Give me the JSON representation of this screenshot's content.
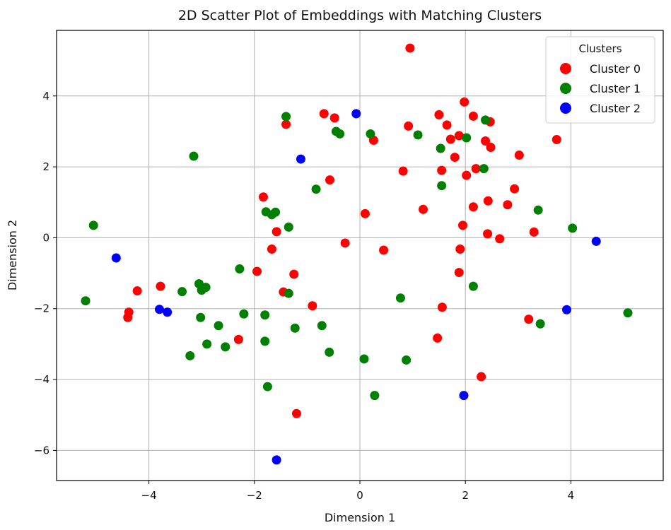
{
  "chart_data": {
    "type": "scatter",
    "title": "2D Scatter Plot of Embeddings with Matching Clusters",
    "xlabel": "Dimension 1",
    "ylabel": "Dimension 2",
    "xlim": [
      -5.75,
      5.75
    ],
    "ylim": [
      -6.85,
      5.85
    ],
    "xticks": [
      -4,
      -2,
      0,
      2,
      4
    ],
    "yticks": [
      -6,
      -4,
      -2,
      0,
      2,
      4
    ],
    "grid": true,
    "legend": {
      "title": "Clusters",
      "position": "top-right"
    },
    "series": [
      {
        "name": "Cluster 0",
        "color": "#ff0000",
        "points": [
          [
            0.95,
            5.35
          ],
          [
            1.98,
            3.83
          ],
          [
            -0.68,
            3.5
          ],
          [
            -0.48,
            3.38
          ],
          [
            -1.4,
            3.2
          ],
          [
            0.92,
            3.15
          ],
          [
            1.5,
            3.47
          ],
          [
            2.15,
            3.43
          ],
          [
            1.65,
            3.18
          ],
          [
            2.47,
            3.27
          ],
          [
            1.88,
            2.88
          ],
          [
            1.72,
            2.78
          ],
          [
            2.38,
            2.73
          ],
          [
            2.48,
            2.55
          ],
          [
            0.26,
            2.75
          ],
          [
            1.8,
            2.27
          ],
          [
            3.02,
            2.33
          ],
          [
            3.73,
            2.77
          ],
          [
            0.82,
            1.88
          ],
          [
            1.55,
            1.9
          ],
          [
            2.2,
            1.95
          ],
          [
            2.02,
            1.76
          ],
          [
            -0.57,
            1.63
          ],
          [
            -1.83,
            1.15
          ],
          [
            2.93,
            1.38
          ],
          [
            2.43,
            1.04
          ],
          [
            2.15,
            0.87
          ],
          [
            2.8,
            0.93
          ],
          [
            1.2,
            0.8
          ],
          [
            0.1,
            0.68
          ],
          [
            1.95,
            0.35
          ],
          [
            -1.58,
            0.17
          ],
          [
            2.42,
            0.11
          ],
          [
            3.3,
            0.16
          ],
          [
            2.65,
            -0.03
          ],
          [
            -0.28,
            -0.15
          ],
          [
            -1.67,
            -0.32
          ],
          [
            0.45,
            -0.35
          ],
          [
            1.9,
            -0.32
          ],
          [
            -1.95,
            -0.95
          ],
          [
            -1.25,
            -1.03
          ],
          [
            1.88,
            -0.98
          ],
          [
            -4.22,
            -1.5
          ],
          [
            -3.78,
            -1.37
          ],
          [
            -1.45,
            -1.53
          ],
          [
            -0.9,
            -1.92
          ],
          [
            1.56,
            -1.96
          ],
          [
            -4.38,
            -2.1
          ],
          [
            -4.4,
            -2.25
          ],
          [
            3.2,
            -2.3
          ],
          [
            -2.3,
            -2.87
          ],
          [
            1.47,
            -2.83
          ],
          [
            2.3,
            -3.92
          ],
          [
            -1.2,
            -4.96
          ]
        ]
      },
      {
        "name": "Cluster 1",
        "color": "#008000",
        "points": [
          [
            -1.4,
            3.42
          ],
          [
            -0.45,
            3.0
          ],
          [
            -0.38,
            2.93
          ],
          [
            0.2,
            2.93
          ],
          [
            1.1,
            2.9
          ],
          [
            2.02,
            2.82
          ],
          [
            2.38,
            3.32
          ],
          [
            -3.15,
            2.3
          ],
          [
            1.53,
            2.52
          ],
          [
            2.35,
            1.95
          ],
          [
            1.55,
            1.47
          ],
          [
            -0.83,
            1.37
          ],
          [
            -1.78,
            0.73
          ],
          [
            -1.67,
            0.65
          ],
          [
            -1.6,
            0.72
          ],
          [
            -1.35,
            0.3
          ],
          [
            3.38,
            0.78
          ],
          [
            4.03,
            0.27
          ],
          [
            -5.05,
            0.35
          ],
          [
            -2.28,
            -0.88
          ],
          [
            -3.05,
            -1.3
          ],
          [
            -3.0,
            -1.48
          ],
          [
            -2.92,
            -1.4
          ],
          [
            -3.37,
            -1.52
          ],
          [
            -1.35,
            -1.57
          ],
          [
            0.77,
            -1.7
          ],
          [
            2.15,
            -1.37
          ],
          [
            -5.2,
            -1.78
          ],
          [
            -2.2,
            -2.15
          ],
          [
            -1.8,
            -2.18
          ],
          [
            -3.02,
            -2.25
          ],
          [
            -2.68,
            -2.48
          ],
          [
            -1.23,
            -2.55
          ],
          [
            -0.72,
            -2.48
          ],
          [
            -0.58,
            -3.23
          ],
          [
            -1.8,
            -2.92
          ],
          [
            -2.9,
            -3.0
          ],
          [
            -2.55,
            -3.08
          ],
          [
            -3.22,
            -3.33
          ],
          [
            0.08,
            -3.42
          ],
          [
            0.88,
            -3.45
          ],
          [
            -1.75,
            -4.2
          ],
          [
            0.28,
            -4.45
          ],
          [
            3.42,
            -2.43
          ],
          [
            5.08,
            -2.12
          ]
        ]
      },
      {
        "name": "Cluster 2",
        "color": "#0000ff",
        "points": [
          [
            -0.07,
            3.5
          ],
          [
            -1.12,
            2.22
          ],
          [
            -4.62,
            -0.57
          ],
          [
            -3.8,
            -2.02
          ],
          [
            -3.65,
            -2.1
          ],
          [
            3.92,
            -2.03
          ],
          [
            4.48,
            -0.1
          ],
          [
            1.97,
            -4.45
          ],
          [
            -1.58,
            -6.27
          ]
        ]
      }
    ]
  }
}
